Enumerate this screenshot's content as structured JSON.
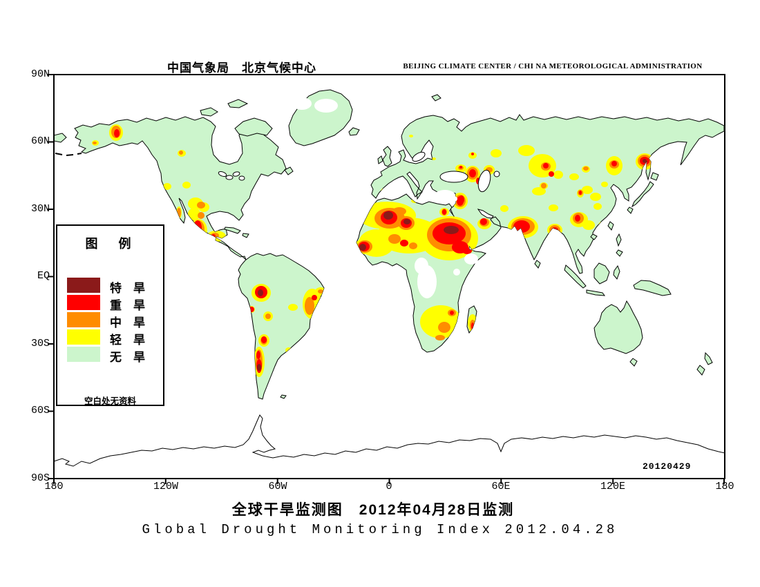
{
  "header": {
    "left": "中国气象局　北京气候中心",
    "right": "BEIJING CLIMATE CENTER / CHI NA METEOROLOGICAL ADMINISTRATION"
  },
  "axes": {
    "lat": [
      "90N",
      "60N",
      "30N",
      "EQ",
      "30S",
      "60S",
      "90S"
    ],
    "lon": [
      "180",
      "120W",
      "60W",
      "0",
      "60E",
      "120E",
      "180"
    ]
  },
  "legend": {
    "title": "图　例",
    "items": [
      {
        "label": "特　旱",
        "color": "#8B1A1A",
        "level": "extreme"
      },
      {
        "label": "重　旱",
        "color": "#FF0000",
        "level": "severe"
      },
      {
        "label": "中　旱",
        "color": "#FF8C00",
        "level": "moderate"
      },
      {
        "label": "轻　旱",
        "color": "#FFFF00",
        "level": "light"
      },
      {
        "label": "无　旱",
        "color": "#CCF5CC",
        "level": "none"
      }
    ],
    "note": "空白处无资料"
  },
  "map": {
    "stamp": "20120429",
    "land_color": "#CCF5CC",
    "ocean_color": "#FFFFFF",
    "no_data_patches": [
      [
        437,
        150,
        14,
        9
      ],
      [
        472,
        153,
        17,
        10
      ],
      [
        610,
        385,
        10,
        12
      ],
      [
        618,
        408,
        14,
        24
      ],
      [
        661,
        394,
        5,
        5
      ],
      [
        682,
        375,
        10,
        8
      ],
      [
        644,
        283,
        15,
        8
      ],
      [
        657,
        288,
        5,
        4
      ]
    ],
    "drought_regions": [
      [
        "light",
        168,
        192,
        10,
        12
      ],
      [
        "light",
        138,
        207,
        5,
        4
      ],
      [
        "light",
        263,
        222,
        6,
        5
      ],
      [
        "light",
        242,
        270,
        6,
        5
      ],
      [
        "light",
        270,
        268,
        6,
        5
      ],
      [
        "light",
        283,
        295,
        11,
        9
      ],
      [
        "light",
        295,
        300,
        8,
        7
      ],
      [
        "light",
        281,
        310,
        9,
        9
      ],
      [
        "light",
        259,
        308,
        4,
        9
      ],
      [
        "light",
        287,
        334,
        13,
        17
      ],
      [
        "light",
        313,
        342,
        14,
        8
      ],
      [
        "light",
        378,
        424,
        14,
        13
      ],
      [
        "light",
        364,
        448,
        5,
        5
      ],
      [
        "light",
        388,
        458,
        7,
        7
      ],
      [
        "light",
        424,
        445,
        7,
        5
      ],
      [
        "light",
        452,
        440,
        14,
        22
      ],
      [
        "light",
        464,
        422,
        8,
        6
      ],
      [
        "light",
        382,
        493,
        8,
        9
      ],
      [
        "light",
        418,
        507,
        5,
        4
      ],
      [
        "light",
        375,
        524,
        8,
        22
      ],
      [
        "light",
        557,
        277,
        6,
        5
      ],
      [
        "light",
        595,
        197,
        3,
        2
      ],
      [
        "light",
        628,
        230,
        3,
        2
      ],
      [
        "light",
        600,
        291,
        5,
        3
      ],
      [
        "light",
        560,
        312,
        42,
        20
      ],
      [
        "light",
        592,
        341,
        46,
        26
      ],
      [
        "light",
        545,
        352,
        26,
        20
      ],
      [
        "light",
        527,
        357,
        14,
        11
      ],
      [
        "light",
        643,
        307,
        7,
        6
      ],
      [
        "light",
        650,
        345,
        42,
        32
      ],
      [
        "light",
        668,
        290,
        8,
        10
      ],
      [
        "light",
        701,
        324,
        10,
        8
      ],
      [
        "light",
        666,
        291,
        11,
        12
      ],
      [
        "light",
        638,
        466,
        30,
        24
      ],
      [
        "light",
        684,
        468,
        7,
        13
      ],
      [
        "light",
        667,
        244,
        8,
        6
      ],
      [
        "light",
        684,
        252,
        11,
        12
      ],
      [
        "light",
        708,
        246,
        8,
        7
      ],
      [
        "light",
        684,
        225,
        6,
        5
      ],
      [
        "light",
        718,
        222,
        8,
        6
      ],
      [
        "light",
        762,
        218,
        12,
        8
      ],
      [
        "light",
        785,
        240,
        20,
        17
      ],
      [
        "light",
        780,
        277,
        10,
        6
      ],
      [
        "light",
        757,
        329,
        22,
        16
      ],
      [
        "light",
        803,
        333,
        11,
        9
      ],
      [
        "light",
        795,
        357,
        4,
        4
      ],
      [
        "light",
        730,
        302,
        6,
        5
      ],
      [
        "light",
        848,
        245,
        6,
        5
      ],
      [
        "light",
        850,
        275,
        8,
        6
      ],
      [
        "light",
        862,
        285,
        8,
        6
      ],
      [
        "light",
        875,
        267,
        5,
        4
      ],
      [
        "light",
        889,
        240,
        12,
        14
      ],
      [
        "light",
        933,
        234,
        13,
        12
      ],
      [
        "light",
        801,
        301,
        7,
        5
      ],
      [
        "light",
        787,
        269,
        6,
        5
      ],
      [
        "light",
        808,
        253,
        7,
        6
      ],
      [
        "light",
        831,
        256,
        7,
        5
      ],
      [
        "light",
        840,
        280,
        5,
        6
      ],
      [
        "light",
        838,
        318,
        13,
        11
      ],
      [
        "light",
        852,
        326,
        9,
        7
      ],
      [
        "light",
        865,
        299,
        6,
        5
      ],
      [
        "light",
        871,
        327,
        5,
        6
      ],
      [
        "light",
        891,
        356,
        3,
        5
      ],
      [
        "moderate",
        168,
        191,
        7,
        9
      ],
      [
        "moderate",
        137,
        207,
        3,
        2
      ],
      [
        "moderate",
        262,
        221,
        3,
        3
      ],
      [
        "moderate",
        291,
        297,
        6,
        5
      ],
      [
        "moderate",
        291,
        312,
        5,
        5
      ],
      [
        "moderate",
        259,
        308,
        3,
        7
      ],
      [
        "moderate",
        287,
        332,
        9,
        13
      ],
      [
        "moderate",
        311,
        341,
        6,
        4
      ],
      [
        "moderate",
        448,
        443,
        7,
        13
      ],
      [
        "moderate",
        464,
        422,
        4,
        3
      ],
      [
        "moderate",
        388,
        458,
        4,
        4
      ],
      [
        "moderate",
        375,
        523,
        5,
        17
      ],
      [
        "moderate",
        382,
        493,
        5,
        6
      ],
      [
        "moderate",
        528,
        357,
        11,
        9
      ],
      [
        "moderate",
        564,
        316,
        22,
        15
      ],
      [
        "moderate",
        588,
        323,
        12,
        10
      ],
      [
        "moderate",
        571,
        346,
        9,
        7
      ],
      [
        "moderate",
        598,
        356,
        6,
        5
      ],
      [
        "moderate",
        578,
        306,
        10,
        6
      ],
      [
        "moderate",
        650,
        340,
        32,
        24
      ],
      [
        "moderate",
        668,
        290,
        5,
        7
      ],
      [
        "moderate",
        701,
        322,
        7,
        6
      ],
      [
        "moderate",
        666,
        291,
        8,
        9
      ],
      [
        "moderate",
        643,
        307,
        4,
        5
      ],
      [
        "moderate",
        643,
        474,
        9,
        8
      ],
      [
        "moderate",
        654,
        453,
        6,
        5
      ],
      [
        "moderate",
        637,
        489,
        7,
        4
      ],
      [
        "moderate",
        684,
        471,
        4,
        8
      ],
      [
        "moderate",
        684,
        251,
        8,
        9
      ],
      [
        "moderate",
        708,
        246,
        5,
        4
      ],
      [
        "moderate",
        667,
        243,
        4,
        3
      ],
      [
        "moderate",
        790,
        241,
        7,
        6
      ],
      [
        "moderate",
        757,
        328,
        17,
        12
      ],
      [
        "moderate",
        803,
        333,
        8,
        7
      ],
      [
        "moderate",
        889,
        238,
        7,
        6
      ],
      [
        "moderate",
        933,
        233,
        10,
        9
      ],
      [
        "moderate",
        837,
        316,
        8,
        8
      ],
      [
        "moderate",
        871,
        327,
        3,
        4
      ],
      [
        "moderate",
        848,
        244,
        4,
        3
      ],
      [
        "moderate",
        787,
        269,
        4,
        4
      ],
      [
        "moderate",
        840,
        279,
        4,
        4
      ],
      [
        "severe",
        169,
        193,
        4,
        6
      ],
      [
        "severe",
        286,
        330,
        6,
        11
      ],
      [
        "severe",
        309,
        342,
        3,
        3
      ],
      [
        "severe",
        378,
        423,
        9,
        9
      ],
      [
        "severe",
        364,
        448,
        4,
        4
      ],
      [
        "severe",
        455,
        431,
        4,
        4
      ],
      [
        "severe",
        382,
        492,
        4,
        5
      ],
      [
        "severe",
        374,
        514,
        3,
        6
      ],
      [
        "severe",
        375,
        530,
        4,
        10
      ],
      [
        "severe",
        527,
        357,
        8,
        7
      ],
      [
        "severe",
        563,
        315,
        12,
        10
      ],
      [
        "severe",
        588,
        323,
        8,
        7
      ],
      [
        "severe",
        585,
        352,
        6,
        5
      ],
      [
        "severe",
        650,
        338,
        24,
        16
      ],
      [
        "severe",
        666,
        358,
        12,
        9
      ],
      [
        "severe",
        676,
        363,
        7,
        5
      ],
      [
        "severe",
        668,
        289,
        4,
        6
      ],
      [
        "severe",
        700,
        321,
        5,
        5
      ],
      [
        "severe",
        666,
        291,
        5,
        7
      ],
      [
        "severe",
        643,
        307,
        3,
        4
      ],
      [
        "severe",
        654,
        453,
        3,
        3
      ],
      [
        "severe",
        684,
        472,
        2,
        5
      ],
      [
        "severe",
        684,
        251,
        5,
        6
      ],
      [
        "severe",
        692,
        262,
        3,
        5
      ],
      [
        "severe",
        667,
        242,
        2,
        2
      ],
      [
        "severe",
        790,
        240,
        4,
        4
      ],
      [
        "severe",
        798,
        252,
        4,
        4
      ],
      [
        "severe",
        755,
        328,
        12,
        9
      ],
      [
        "severe",
        803,
        333,
        5,
        4
      ],
      [
        "severe",
        889,
        237,
        4,
        4
      ],
      [
        "severe",
        933,
        233,
        7,
        6
      ],
      [
        "severe",
        836,
        316,
        4,
        5
      ],
      [
        "severe",
        684,
        223,
        2,
        2
      ],
      [
        "severe",
        840,
        279,
        2,
        3
      ],
      [
        "extreme",
        525,
        358,
        5,
        5
      ],
      [
        "extreme",
        562,
        312,
        7,
        6
      ],
      [
        "extreme",
        589,
        321,
        5,
        4
      ],
      [
        "extreme",
        653,
        333,
        11,
        6
      ],
      [
        "extreme",
        377,
        424,
        4,
        5
      ],
      [
        "extreme",
        375,
        532,
        3,
        5
      ],
      [
        "extreme",
        285,
        342,
        4,
        6
      ],
      [
        "extreme",
        933,
        233,
        3,
        3
      ]
    ]
  },
  "titles": {
    "cn": "全球干旱监测图　2012年04月28日监测",
    "en": "Global Drought Monitoring Index  2012.04.28"
  }
}
